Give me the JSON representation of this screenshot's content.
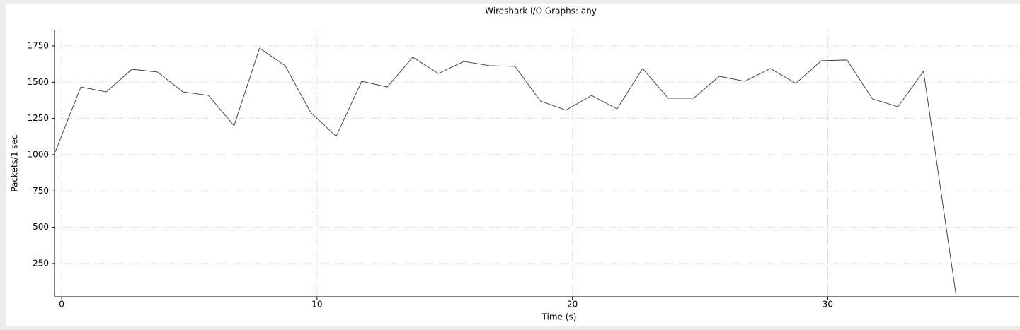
{
  "chart_data": {
    "type": "line",
    "title": "Wireshark I/O Graphs: any",
    "xlabel": "Time (s)",
    "ylabel": "Packets/1 sec",
    "x": [
      -0.25,
      0.75,
      1.75,
      2.75,
      3.75,
      4.75,
      5.75,
      6.75,
      7.75,
      8.75,
      9.75,
      10.75,
      11.75,
      12.75,
      13.75,
      14.75,
      15.75,
      16.75,
      17.75,
      18.75,
      19.75,
      20.75,
      21.75,
      22.75,
      23.75,
      24.75,
      25.75,
      26.75,
      27.75,
      28.75,
      29.75,
      30.75,
      31.75,
      32.75,
      33.75,
      35.05
    ],
    "values": [
      1020,
      1467,
      1433,
      1589,
      1570,
      1433,
      1409,
      1200,
      1735,
      1614,
      1292,
      1127,
      1506,
      1467,
      1672,
      1560,
      1643,
      1614,
      1609,
      1370,
      1307,
      1409,
      1316,
      1594,
      1390,
      1390,
      1541,
      1506,
      1594,
      1492,
      1648,
      1653,
      1385,
      1331,
      1575,
      0
    ],
    "color": "#333333",
    "xlim": [
      -0.28,
      37.5
    ],
    "ylim": [
      21,
      1857
    ],
    "xticks": [
      0,
      10,
      20,
      30
    ],
    "yticks": [
      250,
      500,
      750,
      1000,
      1250,
      1500,
      1750
    ],
    "grid": true
  }
}
